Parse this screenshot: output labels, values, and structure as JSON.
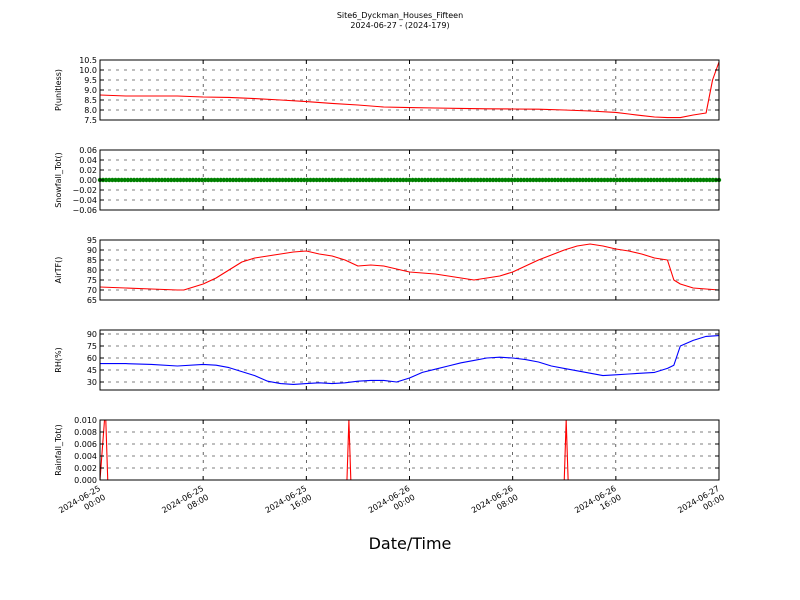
{
  "figure": {
    "title_line1": "Site6_Dyckman_Houses_Fifteen",
    "title_line2": "2024-06-27 - (2024-179)",
    "xlabel": "Date/Time"
  },
  "chart_data": [
    {
      "type": "line",
      "ylabel": "P(unitless)",
      "color": "#ff0000",
      "ylim": [
        7.5,
        10.5
      ],
      "yticks": [
        "10.5",
        "10.0",
        "9.5",
        "9.0",
        "8.5",
        "8.0",
        "7.5"
      ],
      "ytick_values": [
        10.5,
        10.0,
        9.5,
        9.0,
        8.5,
        8.0,
        7.5
      ],
      "grid": true,
      "x": [
        0,
        2,
        4,
        6,
        8,
        10,
        12,
        14,
        16,
        18,
        20,
        22,
        24,
        26,
        28,
        30,
        32,
        34,
        36,
        38,
        40,
        41,
        42,
        43,
        44,
        45,
        46,
        47,
        47.5,
        48
      ],
      "y": [
        8.75,
        8.7,
        8.7,
        8.7,
        8.65,
        8.63,
        8.57,
        8.5,
        8.42,
        8.33,
        8.25,
        8.15,
        8.12,
        8.1,
        8.08,
        8.06,
        8.05,
        8.04,
        8.0,
        7.95,
        7.88,
        7.8,
        7.72,
        7.65,
        7.62,
        7.62,
        7.75,
        7.85,
        9.5,
        10.4
      ]
    },
    {
      "type": "scatter",
      "ylabel": "Snowfall_Tot()",
      "color": "#008000",
      "ylim": [
        -0.06,
        0.06
      ],
      "yticks": [
        "0.06",
        "0.04",
        "0.02",
        "0.00",
        "−0.02",
        "−0.04",
        "−0.06"
      ],
      "ytick_values": [
        0.06,
        0.04,
        0.02,
        0.0,
        -0.02,
        -0.04,
        -0.06
      ],
      "grid": true,
      "constant_value": 0.0,
      "x_range": [
        0,
        48
      ]
    },
    {
      "type": "line",
      "ylabel": "AirTF()",
      "color": "#ff0000",
      "ylim": [
        65,
        95
      ],
      "yticks": [
        "95",
        "90",
        "85",
        "80",
        "75",
        "70",
        "65"
      ],
      "ytick_values": [
        95,
        90,
        85,
        80,
        75,
        70,
        65
      ],
      "grid": true,
      "x": [
        0,
        2,
        4,
        6,
        6.5,
        8,
        9,
        10,
        11,
        12,
        13,
        14,
        15,
        16,
        17,
        18,
        19,
        20,
        21,
        22,
        23,
        24,
        25,
        26,
        27,
        28,
        29,
        30,
        31,
        32,
        33,
        34,
        35,
        36,
        37,
        38,
        39,
        40,
        41,
        42,
        43,
        44,
        44.5,
        45,
        45.5,
        46,
        47,
        48
      ],
      "y": [
        71.5,
        71,
        70.5,
        70,
        70,
        73,
        76,
        80,
        84,
        86,
        87,
        88,
        89,
        89.5,
        88,
        87,
        85,
        82,
        82.5,
        82,
        80.5,
        79,
        78.5,
        78,
        77,
        76,
        75,
        76,
        77,
        79,
        82,
        85,
        87.5,
        90,
        92,
        93,
        92,
        90.5,
        89.5,
        88,
        86,
        85,
        75,
        73,
        72,
        71,
        70.5,
        70
      ]
    },
    {
      "type": "line",
      "ylabel": "RH(%)",
      "color": "#0000ff",
      "ylim": [
        20,
        95
      ],
      "yticks": [
        "90",
        "75",
        "60",
        "45",
        "30"
      ],
      "ytick_values": [
        90,
        75,
        60,
        45,
        30
      ],
      "grid": true,
      "x": [
        0,
        2,
        4,
        6,
        8,
        9,
        10,
        11,
        12,
        13,
        14,
        15,
        16,
        17,
        18,
        19,
        20,
        21,
        22,
        23,
        24,
        25,
        26,
        27,
        28,
        29,
        30,
        31,
        32,
        33,
        34,
        35,
        36,
        37,
        38,
        39,
        40,
        41,
        42,
        43,
        44,
        44.5,
        45,
        46,
        47,
        48
      ],
      "y": [
        53,
        53,
        52,
        50,
        52,
        51,
        48,
        43,
        38,
        31,
        28,
        27,
        28,
        29,
        28,
        29,
        31,
        32,
        32,
        30,
        35,
        42,
        46,
        50,
        54,
        57,
        60,
        61,
        60,
        58,
        55,
        50,
        47,
        44,
        41,
        38,
        39,
        40,
        41,
        42,
        47,
        51,
        75,
        82,
        87,
        88
      ]
    },
    {
      "type": "line",
      "ylabel": "Rainfall_Tot()",
      "color": "#ff0000",
      "ylim": [
        0.0,
        0.01
      ],
      "yticks": [
        "0.010",
        "0.008",
        "0.006",
        "0.004",
        "0.002",
        "0.000"
      ],
      "ytick_values": [
        0.01,
        0.008,
        0.006,
        0.004,
        0.002,
        0.0
      ],
      "grid": true,
      "x": [
        0,
        0.35,
        0.45,
        0.6,
        19.15,
        19.3,
        19.45,
        36.0,
        36.15,
        36.3,
        48
      ],
      "y": [
        0,
        0.01,
        0.01,
        0,
        0,
        0.01,
        0,
        0,
        0.01,
        0,
        0
      ]
    }
  ],
  "x_axis": {
    "tick_positions": [
      0,
      8,
      16,
      24,
      32,
      40,
      48
    ],
    "tick_labels": [
      [
        "2024-06-25",
        "00:00"
      ],
      [
        "2024-06-25",
        "08:00"
      ],
      [
        "2024-06-25",
        "16:00"
      ],
      [
        "2024-06-26",
        "00:00"
      ],
      [
        "2024-06-26",
        "08:00"
      ],
      [
        "2024-06-26",
        "16:00"
      ],
      [
        "2024-06-27",
        "00:00"
      ]
    ]
  }
}
